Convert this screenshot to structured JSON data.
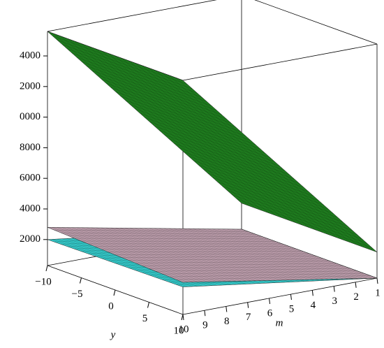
{
  "chart_data": {
    "type": "surface3d",
    "xlabel": "y",
    "ylabel": "m",
    "xlim": [
      -10,
      10
    ],
    "ylim": [
      10,
      1
    ],
    "zlim": [
      300,
      15600
    ],
    "xticks": [
      {
        "value": -10,
        "label": "−10"
      },
      {
        "value": -5,
        "label": "−5"
      },
      0,
      5,
      10
    ],
    "yticks": [
      10,
      9,
      8,
      7,
      6,
      5,
      4,
      3,
      2,
      1
    ],
    "zticks": [
      2000,
      4000,
      6000,
      8000,
      {
        "value": 10000,
        "label": "0000"
      },
      {
        "value": 12000,
        "label": "2000"
      },
      {
        "value": 14000,
        "label": "4000"
      }
    ],
    "surfaces": [
      {
        "color": "#33c4c4",
        "z": [
          2000,
          2100,
          300,
          300
        ]
      },
      {
        "color": "#b89aa8",
        "z": [
          2800,
          2400,
          300,
          300
        ]
      },
      {
        "color": "#1e7a1e",
        "z": [
          15600,
          15600,
          2000,
          2000
        ]
      }
    ]
  }
}
